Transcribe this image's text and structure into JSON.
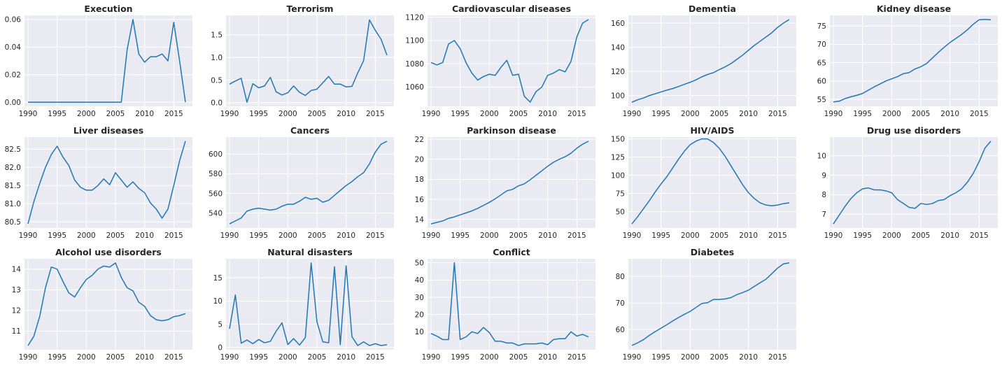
{
  "figure": {
    "panel_background": "#eaeaf2",
    "grid_color": "#ffffff",
    "line_color": "#1f77b4",
    "text_color": "#262626"
  },
  "chart_data": [
    {
      "type": "line",
      "title": "Execution",
      "x": [
        1990,
        1991,
        1992,
        1993,
        1994,
        1995,
        1996,
        1997,
        1998,
        1999,
        2000,
        2001,
        2002,
        2003,
        2004,
        2005,
        2006,
        2007,
        2008,
        2009,
        2010,
        2011,
        2012,
        2013,
        2014,
        2015,
        2016,
        2017
      ],
      "values": [
        0,
        0,
        0,
        0,
        0,
        0,
        0,
        0,
        0,
        0,
        0,
        0,
        0,
        0,
        0,
        0,
        0,
        0.038,
        0.06,
        0.035,
        0.029,
        0.033,
        0.033,
        0.035,
        0.03,
        0.058,
        0.03,
        0
      ],
      "xlim": [
        1989.4,
        2018.2
      ],
      "ylim": [
        -0.003,
        0.063
      ],
      "xticks": [
        1990,
        1995,
        2000,
        2005,
        2010,
        2015
      ],
      "yticks": [
        0.0,
        0.02,
        0.04,
        0.06
      ],
      "xtick_labels": [
        "1990",
        "1995",
        "2000",
        "2005",
        "2010",
        "2015"
      ],
      "ytick_labels": [
        "0.00",
        "0.02",
        "0.04",
        "0.06"
      ]
    },
    {
      "type": "line",
      "title": "Terrorism",
      "x": [
        1990,
        1991,
        1992,
        1993,
        1994,
        1995,
        1996,
        1997,
        1998,
        1999,
        2000,
        2001,
        2002,
        2003,
        2004,
        2005,
        2006,
        2007,
        2008,
        2009,
        2010,
        2011,
        2012,
        2013,
        2014,
        2015,
        2016,
        2017
      ],
      "values": [
        0.41,
        0.48,
        0.54,
        0.01,
        0.42,
        0.33,
        0.37,
        0.56,
        0.24,
        0.17,
        0.22,
        0.37,
        0.23,
        0.16,
        0.27,
        0.3,
        0.44,
        0.58,
        0.41,
        0.41,
        0.35,
        0.36,
        0.66,
        0.93,
        1.83,
        1.6,
        1.4,
        1.05
      ],
      "xlim": [
        1989.4,
        2018.2
      ],
      "ylim": [
        -0.08,
        1.93
      ],
      "xticks": [
        1990,
        1995,
        2000,
        2005,
        2010,
        2015
      ],
      "yticks": [
        0.0,
        0.5,
        1.0,
        1.5
      ],
      "xtick_labels": [
        "1990",
        "1995",
        "2000",
        "2005",
        "2010",
        "2015"
      ],
      "ytick_labels": [
        "0.0",
        "0.5",
        "1.0",
        "1.5"
      ]
    },
    {
      "type": "line",
      "title": "Cardiovascular diseases",
      "x": [
        1990,
        1991,
        1992,
        1993,
        1994,
        1995,
        1996,
        1997,
        1998,
        1999,
        2000,
        2001,
        2002,
        2003,
        2004,
        2005,
        2006,
        2007,
        2008,
        2009,
        2010,
        2011,
        2012,
        2013,
        2014,
        2015,
        2016,
        2017
      ],
      "values": [
        1081,
        1079,
        1081,
        1097,
        1100,
        1093,
        1081,
        1072,
        1066,
        1069,
        1071,
        1070,
        1077,
        1083,
        1070,
        1071,
        1052,
        1047,
        1056,
        1060,
        1070,
        1072,
        1075,
        1073,
        1082,
        1103,
        1115,
        1118
      ],
      "xlim": [
        1989.4,
        2018.2
      ],
      "ylim": [
        1043.4,
        1121.6
      ],
      "xticks": [
        1990,
        1995,
        2000,
        2005,
        2010,
        2015
      ],
      "yticks": [
        1060,
        1080,
        1100,
        1120
      ],
      "xtick_labels": [
        "1990",
        "1995",
        "2000",
        "2005",
        "2010",
        "2015"
      ],
      "ytick_labels": [
        "1060",
        "1080",
        "1100",
        "1120"
      ]
    },
    {
      "type": "line",
      "title": "Dementia",
      "x": [
        1990,
        1991,
        1992,
        1993,
        1994,
        1995,
        1996,
        1997,
        1998,
        1999,
        2000,
        2001,
        2002,
        2003,
        2004,
        2005,
        2006,
        2007,
        2008,
        2009,
        2010,
        2011,
        2012,
        2013,
        2014,
        2015,
        2016,
        2017
      ],
      "values": [
        94.5,
        96.5,
        98.0,
        100.0,
        101.5,
        103.0,
        104.5,
        105.8,
        107.5,
        109.3,
        111.0,
        113.0,
        115.5,
        117.5,
        119.0,
        121.5,
        123.8,
        126.5,
        130.0,
        133.5,
        137.5,
        141.5,
        145.0,
        148.5,
        152.0,
        156.5,
        160.0,
        163.0
      ],
      "xlim": [
        1989.4,
        2018.2
      ],
      "ylim": [
        91.1,
        166.4
      ],
      "xticks": [
        1990,
        1995,
        2000,
        2005,
        2010,
        2015
      ],
      "yticks": [
        100,
        120,
        140,
        160
      ],
      "xtick_labels": [
        "1990",
        "1995",
        "2000",
        "2005",
        "2010",
        "2015"
      ],
      "ytick_labels": [
        "100",
        "120",
        "140",
        "160"
      ]
    },
    {
      "type": "line",
      "title": "Kidney disease",
      "x": [
        1990,
        1991,
        1992,
        1993,
        1994,
        1995,
        1996,
        1997,
        1998,
        1999,
        2000,
        2001,
        2002,
        2003,
        2004,
        2005,
        2006,
        2007,
        2008,
        2009,
        2010,
        2011,
        2012,
        2013,
        2014,
        2015,
        2016,
        2017
      ],
      "values": [
        54.3,
        54.5,
        55.2,
        55.7,
        56.1,
        56.6,
        57.5,
        58.4,
        59.2,
        60.0,
        60.6,
        61.2,
        62.0,
        62.3,
        63.3,
        63.9,
        64.8,
        66.3,
        67.8,
        69.2,
        70.5,
        71.6,
        72.7,
        74.0,
        75.5,
        76.7,
        76.8,
        76.7
      ],
      "xlim": [
        1989.4,
        2018.2
      ],
      "ylim": [
        53.1,
        77.9
      ],
      "xticks": [
        1990,
        1995,
        2000,
        2005,
        2010,
        2015
      ],
      "yticks": [
        55,
        60,
        65,
        70,
        75
      ],
      "xtick_labels": [
        "1990",
        "1995",
        "2000",
        "2005",
        "2010",
        "2015"
      ],
      "ytick_labels": [
        "55",
        "60",
        "65",
        "70",
        "75"
      ]
    },
    {
      "type": "line",
      "title": "Liver diseases",
      "x": [
        1990,
        1991,
        1992,
        1993,
        1994,
        1995,
        1996,
        1997,
        1998,
        1999,
        2000,
        2001,
        2002,
        2003,
        2004,
        2005,
        2006,
        2007,
        2008,
        2009,
        2010,
        2011,
        2012,
        2013,
        2014,
        2015,
        2016,
        2017
      ],
      "values": [
        80.45,
        81.05,
        81.55,
        82.0,
        82.35,
        82.58,
        82.28,
        82.05,
        81.65,
        81.45,
        81.37,
        81.37,
        81.5,
        81.68,
        81.52,
        81.85,
        81.65,
        81.45,
        81.6,
        81.42,
        81.3,
        81.02,
        80.85,
        80.6,
        80.85,
        81.5,
        82.18,
        82.72
      ],
      "xlim": [
        1989.4,
        2018.2
      ],
      "ylim": [
        80.33,
        82.83
      ],
      "xticks": [
        1990,
        1995,
        2000,
        2005,
        2010,
        2015
      ],
      "yticks": [
        80.5,
        81.0,
        81.5,
        82.0,
        82.5
      ],
      "xtick_labels": [
        "1990",
        "1995",
        "2000",
        "2005",
        "2010",
        "2015"
      ],
      "ytick_labels": [
        "80.5",
        "81.0",
        "81.5",
        "82.0",
        "82.5"
      ]
    },
    {
      "type": "line",
      "title": "Cancers",
      "x": [
        1990,
        1991,
        1992,
        1993,
        1994,
        1995,
        1996,
        1997,
        1998,
        1999,
        2000,
        2001,
        2002,
        2003,
        2004,
        2005,
        2006,
        2007,
        2008,
        2009,
        2010,
        2011,
        2012,
        2013,
        2014,
        2015,
        2016,
        2017
      ],
      "values": [
        529,
        532,
        535,
        542,
        544,
        545,
        544,
        543,
        544,
        547,
        549,
        549,
        552,
        556,
        554,
        555,
        551,
        553,
        558,
        563,
        568,
        572,
        577,
        581,
        590,
        602,
        610,
        613
      ],
      "xlim": [
        1989.4,
        2018.2
      ],
      "ylim": [
        524.8,
        617.2
      ],
      "xticks": [
        1990,
        1995,
        2000,
        2005,
        2010,
        2015
      ],
      "yticks": [
        540,
        560,
        580,
        600
      ],
      "xtick_labels": [
        "1990",
        "1995",
        "2000",
        "2005",
        "2010",
        "2015"
      ],
      "ytick_labels": [
        "540",
        "560",
        "580",
        "600"
      ]
    },
    {
      "type": "line",
      "title": "Parkinson disease",
      "x": [
        1990,
        1991,
        1992,
        1993,
        1994,
        1995,
        1996,
        1997,
        1998,
        1999,
        2000,
        2001,
        2002,
        2003,
        2004,
        2005,
        2006,
        2007,
        2008,
        2009,
        2010,
        2011,
        2012,
        2013,
        2014,
        2015,
        2016,
        2017
      ],
      "values": [
        13.55,
        13.7,
        13.85,
        14.1,
        14.25,
        14.45,
        14.65,
        14.85,
        15.1,
        15.4,
        15.7,
        16.05,
        16.45,
        16.85,
        17.0,
        17.35,
        17.55,
        17.95,
        18.4,
        18.85,
        19.3,
        19.7,
        20.0,
        20.25,
        20.6,
        21.1,
        21.5,
        21.8
      ],
      "xlim": [
        1989.4,
        2018.2
      ],
      "ylim": [
        13.14,
        22.21
      ],
      "xticks": [
        1990,
        1995,
        2000,
        2005,
        2010,
        2015
      ],
      "yticks": [
        14,
        16,
        18,
        20,
        22
      ],
      "xtick_labels": [
        "1990",
        "1995",
        "2000",
        "2005",
        "2010",
        "2015"
      ],
      "ytick_labels": [
        "14",
        "16",
        "18",
        "20",
        "22"
      ]
    },
    {
      "type": "line",
      "title": "HIV/AIDS",
      "x": [
        1990,
        1991,
        1992,
        1993,
        1994,
        1995,
        1996,
        1997,
        1998,
        1999,
        2000,
        2001,
        2002,
        2003,
        2004,
        2005,
        2006,
        2007,
        2008,
        2009,
        2010,
        2011,
        2012,
        2013,
        2014,
        2015,
        2016,
        2017
      ],
      "values": [
        33,
        43,
        54,
        65,
        77,
        88,
        98,
        110,
        122,
        133,
        142,
        147,
        150,
        150,
        145,
        137,
        126,
        113,
        100,
        87,
        76,
        68,
        62,
        59,
        58,
        59,
        61,
        62
      ],
      "xlim": [
        1989.4,
        2018.2
      ],
      "ylim": [
        27.4,
        152.5
      ],
      "xticks": [
        1990,
        1995,
        2000,
        2005,
        2010,
        2015
      ],
      "yticks": [
        50,
        75,
        100,
        125,
        150
      ],
      "xtick_labels": [
        "1990",
        "1995",
        "2000",
        "2005",
        "2010",
        "2015"
      ],
      "ytick_labels": [
        "50",
        "75",
        "100",
        "125",
        "150"
      ]
    },
    {
      "type": "line",
      "title": "Drug use disorders",
      "x": [
        1990,
        1991,
        1992,
        1993,
        1994,
        1995,
        1996,
        1997,
        1998,
        1999,
        2000,
        2001,
        2002,
        2003,
        2004,
        2005,
        2006,
        2007,
        2008,
        2009,
        2010,
        2011,
        2012,
        2013,
        2014,
        2015,
        2016,
        2017
      ],
      "values": [
        6.5,
        6.95,
        7.4,
        7.8,
        8.1,
        8.3,
        8.35,
        8.25,
        8.25,
        8.2,
        8.1,
        7.75,
        7.55,
        7.35,
        7.3,
        7.55,
        7.5,
        7.55,
        7.7,
        7.75,
        7.95,
        8.1,
        8.3,
        8.65,
        9.1,
        9.7,
        10.4,
        10.75
      ],
      "xlim": [
        1989.4,
        2018.2
      ],
      "ylim": [
        6.29,
        10.96
      ],
      "xticks": [
        1990,
        1995,
        2000,
        2005,
        2010,
        2015
      ],
      "yticks": [
        7,
        8,
        9,
        10
      ],
      "xtick_labels": [
        "1990",
        "1995",
        "2000",
        "2005",
        "2010",
        "2015"
      ],
      "ytick_labels": [
        "7",
        "8",
        "9",
        "10"
      ]
    },
    {
      "type": "line",
      "title": "Alcohol use disorders",
      "x": [
        1990,
        1991,
        1992,
        1993,
        1994,
        1995,
        1996,
        1997,
        1998,
        1999,
        2000,
        2001,
        2002,
        2003,
        2004,
        2005,
        2006,
        2007,
        2008,
        2009,
        2010,
        2011,
        2012,
        2013,
        2014,
        2015,
        2016,
        2017
      ],
      "values": [
        10.3,
        10.75,
        11.7,
        13.1,
        14.1,
        14.0,
        13.4,
        12.85,
        12.65,
        13.1,
        13.5,
        13.7,
        14.0,
        14.15,
        14.1,
        14.3,
        13.6,
        13.1,
        12.95,
        12.4,
        12.2,
        11.75,
        11.55,
        11.5,
        11.55,
        11.7,
        11.75,
        11.85
      ],
      "xlim": [
        1989.4,
        2018.2
      ],
      "ylim": [
        10.1,
        14.5
      ],
      "xticks": [
        1990,
        1995,
        2000,
        2005,
        2010,
        2015
      ],
      "yticks": [
        11,
        12,
        13,
        14
      ],
      "xtick_labels": [
        "1990",
        "1995",
        "2000",
        "2005",
        "2010",
        "2015"
      ],
      "ytick_labels": [
        "11",
        "12",
        "13",
        "14"
      ]
    },
    {
      "type": "line",
      "title": "Natural disasters",
      "x": [
        1990,
        1991,
        1992,
        1993,
        1994,
        1995,
        1996,
        1997,
        1998,
        1999,
        2000,
        2001,
        2002,
        2003,
        2004,
        2005,
        2006,
        2007,
        2008,
        2009,
        2010,
        2011,
        2012,
        2013,
        2014,
        2015,
        2016,
        2017
      ],
      "values": [
        4.0,
        11.3,
        0.9,
        1.6,
        0.8,
        1.7,
        1.0,
        1.3,
        3.5,
        5.3,
        0.6,
        1.9,
        0.5,
        2.1,
        18.2,
        5.5,
        1.2,
        1.0,
        17.4,
        0.6,
        17.6,
        2.3,
        0.4,
        1.2,
        0.4,
        0.8,
        0.4,
        0.6
      ],
      "xlim": [
        1989.4,
        2018.2
      ],
      "ylim": [
        -0.5,
        19.1
      ],
      "xticks": [
        1990,
        1995,
        2000,
        2005,
        2010,
        2015
      ],
      "yticks": [
        0,
        5,
        10,
        15
      ],
      "xtick_labels": [
        "1990",
        "1995",
        "2000",
        "2005",
        "2010",
        "2015"
      ],
      "ytick_labels": [
        "0",
        "5",
        "10",
        "15"
      ]
    },
    {
      "type": "line",
      "title": "Conflict",
      "x": [
        1990,
        1991,
        1992,
        1993,
        1994,
        1995,
        1996,
        1997,
        1998,
        1999,
        2000,
        2001,
        2002,
        2003,
        2004,
        2005,
        2006,
        2007,
        2008,
        2009,
        2010,
        2011,
        2012,
        2013,
        2014,
        2015,
        2016,
        2017
      ],
      "values": [
        9.0,
        7.5,
        5.5,
        5.5,
        50.0,
        5.5,
        7.0,
        10.0,
        9.0,
        12.5,
        9.5,
        4.5,
        4.5,
        3.5,
        3.5,
        2.0,
        3.0,
        3.0,
        3.0,
        3.5,
        2.5,
        5.5,
        6.0,
        6.0,
        10.0,
        7.5,
        8.5,
        7.0
      ],
      "xlim": [
        1989.4,
        2018.2
      ],
      "ylim": [
        -0.4,
        52.3
      ],
      "xticks": [
        1990,
        1995,
        2000,
        2005,
        2010,
        2015
      ],
      "yticks": [
        10,
        20,
        30,
        40,
        50
      ],
      "xtick_labels": [
        "1990",
        "1995",
        "2000",
        "2005",
        "2010",
        "2015"
      ],
      "ytick_labels": [
        "10",
        "20",
        "30",
        "40",
        "50"
      ]
    },
    {
      "type": "line",
      "title": "Diabetes",
      "x": [
        1990,
        1991,
        1992,
        1993,
        1994,
        1995,
        1996,
        1997,
        1998,
        1999,
        2000,
        2001,
        2002,
        2003,
        2004,
        2005,
        2006,
        2007,
        2008,
        2009,
        2010,
        2011,
        2012,
        2013,
        2014,
        2015,
        2016,
        2017
      ],
      "values": [
        54.0,
        55.0,
        56.2,
        57.8,
        59.2,
        60.5,
        61.8,
        63.2,
        64.5,
        65.7,
        66.8,
        68.3,
        69.8,
        70.1,
        71.3,
        71.3,
        71.5,
        72.0,
        73.1,
        73.9,
        74.8,
        76.2,
        77.6,
        78.9,
        81.0,
        83.1,
        84.7,
        85.1
      ],
      "xlim": [
        1989.4,
        2018.2
      ],
      "ylim": [
        52.4,
        86.6
      ],
      "xticks": [
        1990,
        1995,
        2000,
        2005,
        2010,
        2015
      ],
      "yticks": [
        60,
        70,
        80
      ],
      "xtick_labels": [
        "1990",
        "1995",
        "2000",
        "2005",
        "2010",
        "2015"
      ],
      "ytick_labels": [
        "60",
        "70",
        "80"
      ]
    }
  ]
}
